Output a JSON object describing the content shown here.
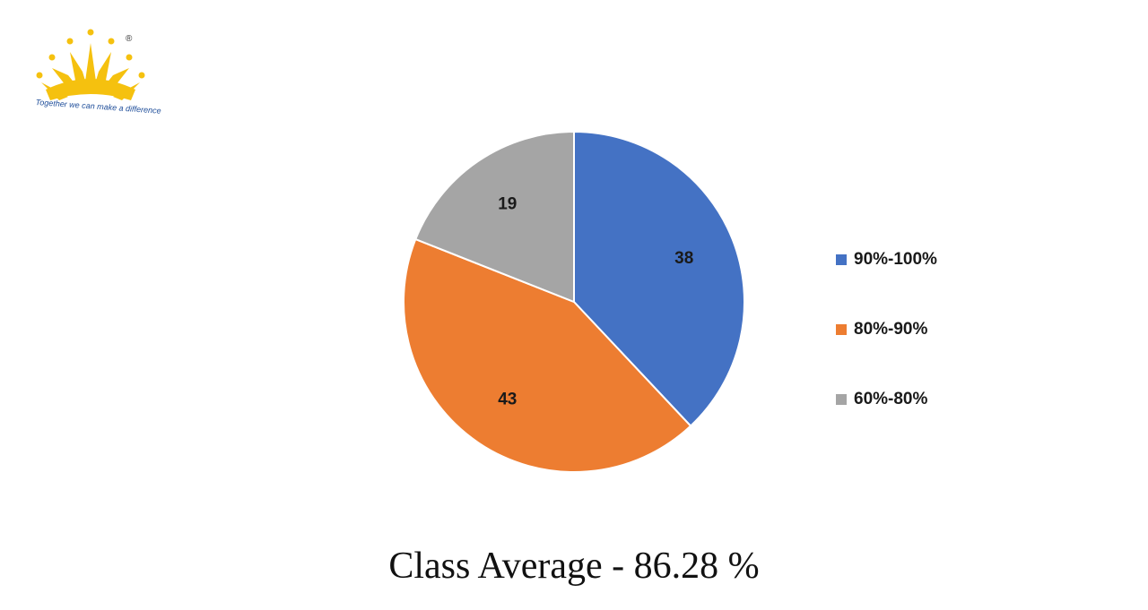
{
  "logo": {
    "icon": "sun-crown-logo",
    "registered_mark": "®",
    "tagline": "Together we can make a difference",
    "color": "#F5C10F"
  },
  "chart_data": {
    "type": "pie",
    "categories": [
      "90%-100%",
      "80%-90%",
      "60%-80%"
    ],
    "values": [
      38,
      43,
      19
    ],
    "colors": [
      "#4472C4",
      "#ED7D31",
      "#A5A5A5"
    ],
    "data_labels": [
      "38",
      "43",
      "19"
    ],
    "legend": "right",
    "start_angle": "12 o'clock, clockwise"
  },
  "footer": {
    "text": "Class Average - 86.28 %"
  }
}
